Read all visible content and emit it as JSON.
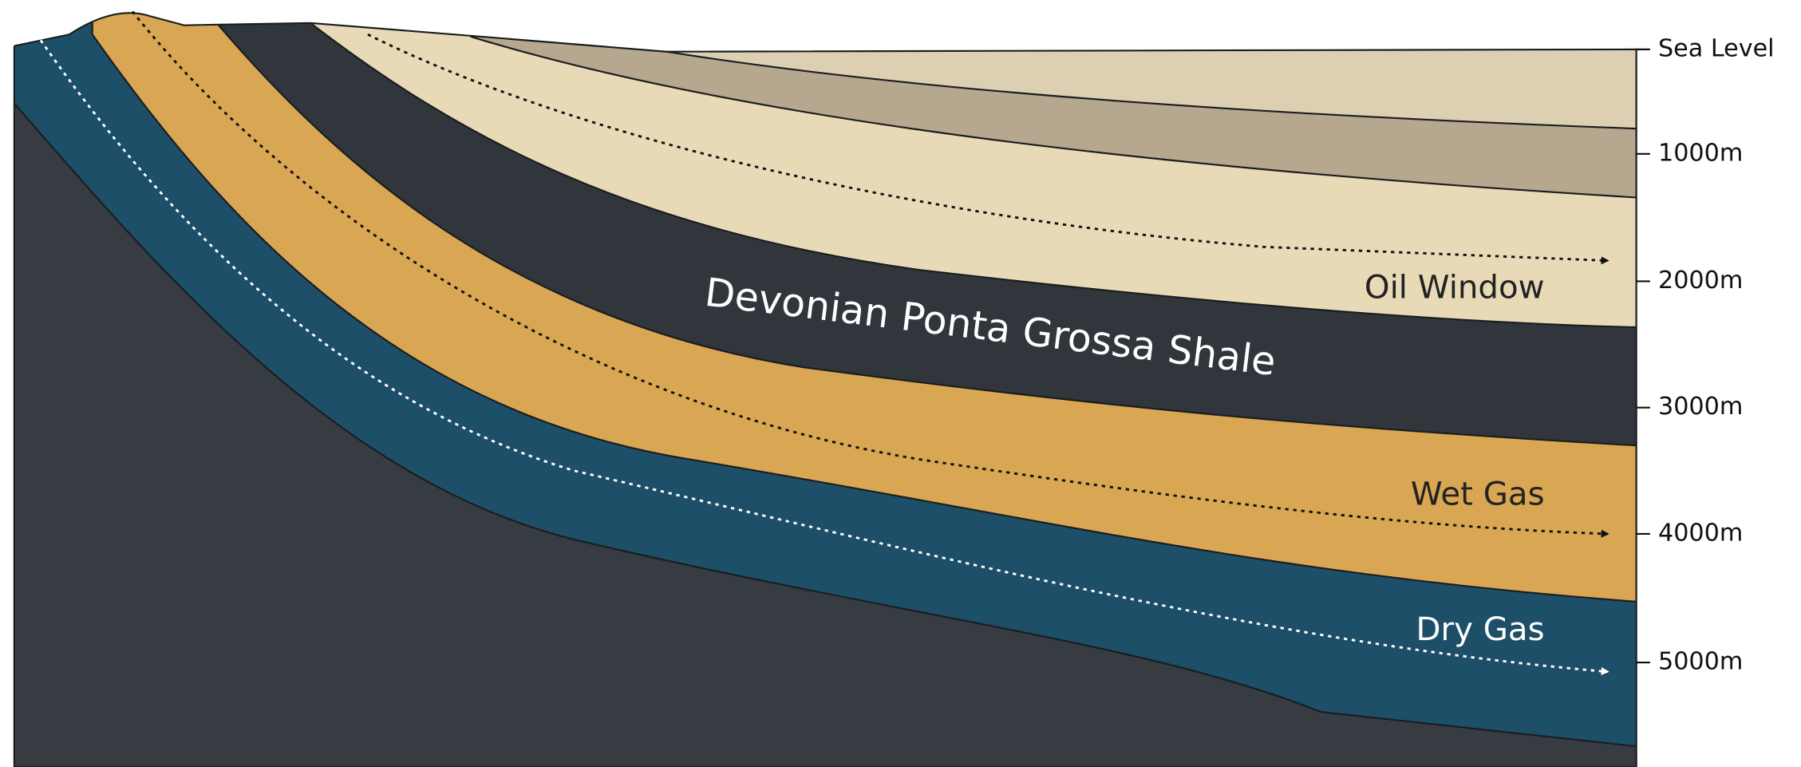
{
  "depth_scale": {
    "labels": [
      "Sea Level",
      "1000m",
      "2000m",
      "3000m",
      "4000m",
      "5000m"
    ]
  },
  "formation_label": "Devonian Ponta Grossa Shale",
  "maturity_zones": [
    {
      "label": "Oil Window"
    },
    {
      "label": "Wet Gas"
    },
    {
      "label": "Dry Gas"
    }
  ]
}
